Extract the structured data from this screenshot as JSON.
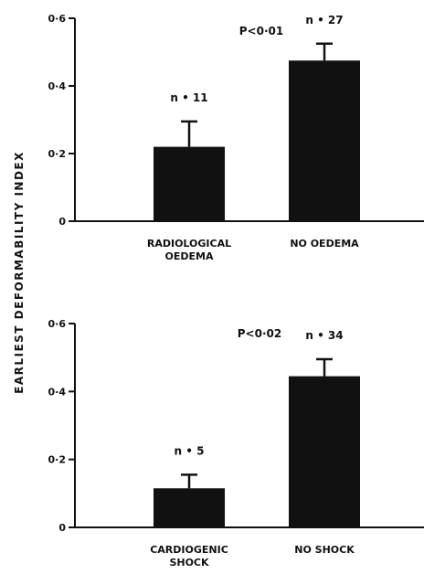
{
  "shared_ylabel": "EARLIEST DEFORMABILITY INDEX",
  "colors": {
    "bar": "#111111",
    "axis": "#111111",
    "background": "#ffffff"
  },
  "chart_data": [
    {
      "type": "bar",
      "categories": [
        "RADIOLOGICAL OEDEMA",
        "NO OEDEMA"
      ],
      "category_lines": [
        [
          "RADIOLOGICAL",
          "OEDEMA"
        ],
        [
          "NO OEDEMA"
        ]
      ],
      "values": [
        0.22,
        0.475
      ],
      "error_upper": [
        0.295,
        0.525
      ],
      "n_labels": [
        "n • 11",
        "n • 27"
      ],
      "p_label": "P<0·01",
      "yticks": [
        0,
        0.2,
        0.4,
        0.6
      ],
      "ytick_labels": [
        "0",
        "0·2",
        "0·4",
        "0·6"
      ],
      "ylim": [
        0,
        0.6
      ],
      "grid": false,
      "legend": "none"
    },
    {
      "type": "bar",
      "categories": [
        "CARDIOGENIC SHOCK",
        "NO SHOCK"
      ],
      "category_lines": [
        [
          "CARDIOGENIC",
          "SHOCK"
        ],
        [
          "NO SHOCK"
        ]
      ],
      "values": [
        0.115,
        0.445
      ],
      "error_upper": [
        0.155,
        0.495
      ],
      "n_labels": [
        "n • 5",
        "n • 34"
      ],
      "p_label": "P<0·02",
      "yticks": [
        0,
        0.2,
        0.4,
        0.6
      ],
      "ytick_labels": [
        "0",
        "0·2",
        "0·4",
        "0·6"
      ],
      "ylim": [
        0,
        0.6
      ],
      "grid": false,
      "legend": "none"
    }
  ]
}
